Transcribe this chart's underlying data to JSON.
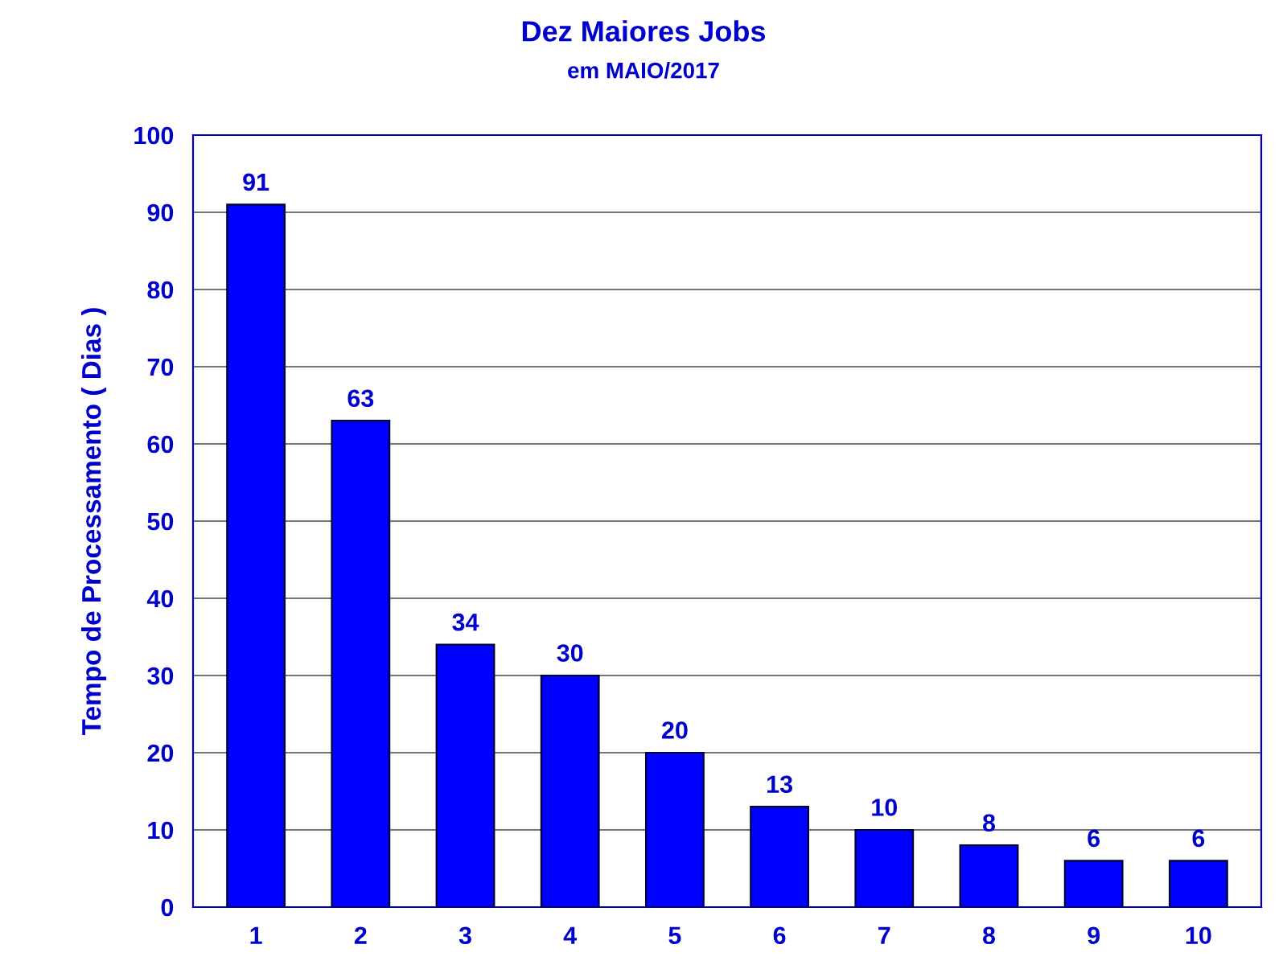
{
  "chart_data": {
    "type": "bar",
    "title": "Dez Maiores Jobs",
    "subtitle": "em MAIO/2017",
    "ylabel": "Tempo de Processamento ( Dias )",
    "categories": [
      "1",
      "2",
      "3",
      "4",
      "5",
      "6",
      "7",
      "8",
      "9",
      "10"
    ],
    "values": [
      91,
      63,
      34,
      30,
      20,
      13,
      10,
      8,
      6,
      6
    ],
    "color": "#0000ff",
    "ylim": [
      0,
      100
    ],
    "yticks": [
      0,
      10,
      20,
      30,
      40,
      50,
      60,
      70,
      80,
      90,
      100
    ],
    "grid": "y",
    "data_labels": true
  }
}
